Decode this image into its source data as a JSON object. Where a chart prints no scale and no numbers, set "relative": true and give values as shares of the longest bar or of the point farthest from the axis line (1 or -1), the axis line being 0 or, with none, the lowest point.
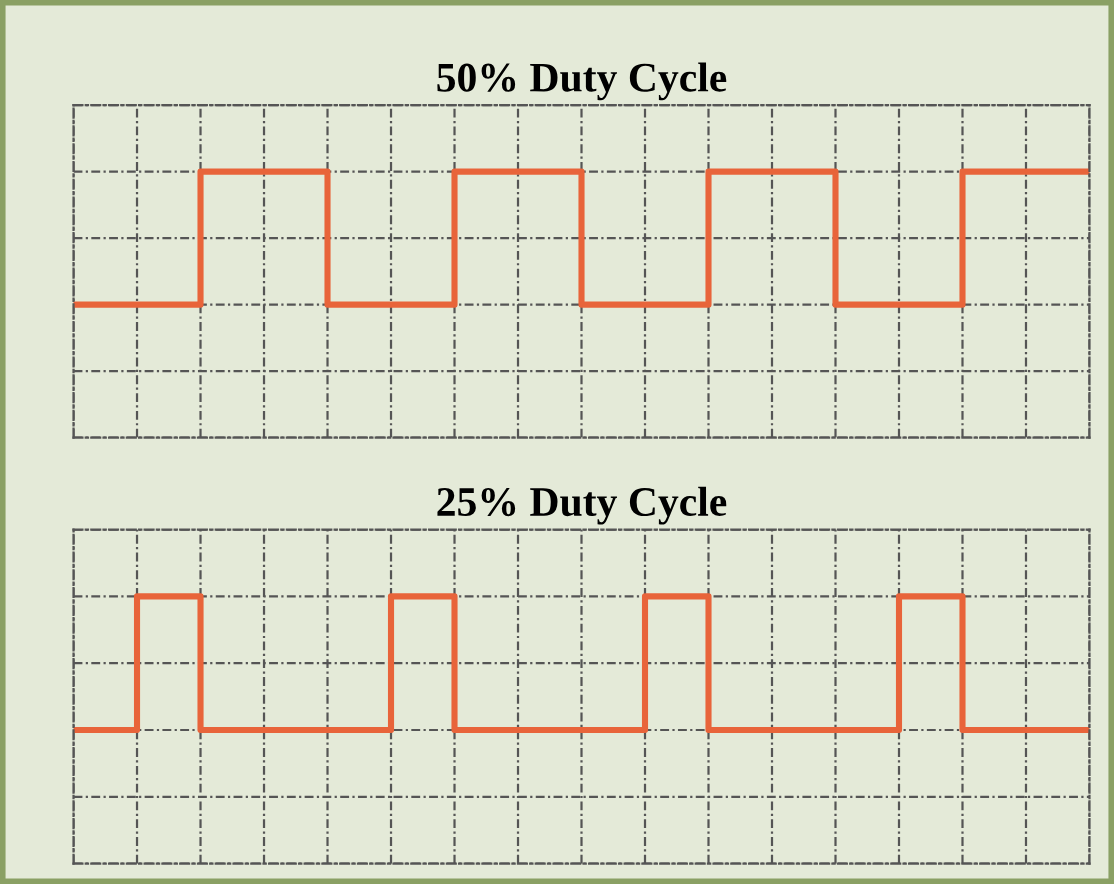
{
  "chart_data": [
    {
      "type": "step",
      "title": "50% Duty Cycle",
      "relative": true,
      "grid": true,
      "tick_labels": false,
      "categories": [
        null,
        null,
        null,
        null,
        null,
        null,
        null,
        null,
        null,
        null,
        null,
        null,
        null,
        null,
        null,
        null,
        null
      ],
      "series": [
        {
          "color": "#e8643a",
          "values": [
            0,
            0,
            1,
            1,
            0,
            0,
            1,
            1,
            0,
            0,
            1,
            1,
            0,
            0,
            1,
            1,
            1
          ]
        }
      ]
    },
    {
      "type": "step",
      "title": "25% Duty Cycle",
      "relative": true,
      "grid": true,
      "tick_labels": false,
      "categories": [
        null,
        null,
        null,
        null,
        null,
        null,
        null,
        null,
        null,
        null,
        null,
        null,
        null,
        null,
        null,
        null,
        null
      ],
      "series": [
        {
          "color": "#e8643a",
          "values": [
            0,
            1,
            0,
            0,
            0,
            1,
            0,
            0,
            0,
            1,
            0,
            0,
            0,
            1,
            0,
            0,
            0
          ]
        }
      ]
    }
  ]
}
